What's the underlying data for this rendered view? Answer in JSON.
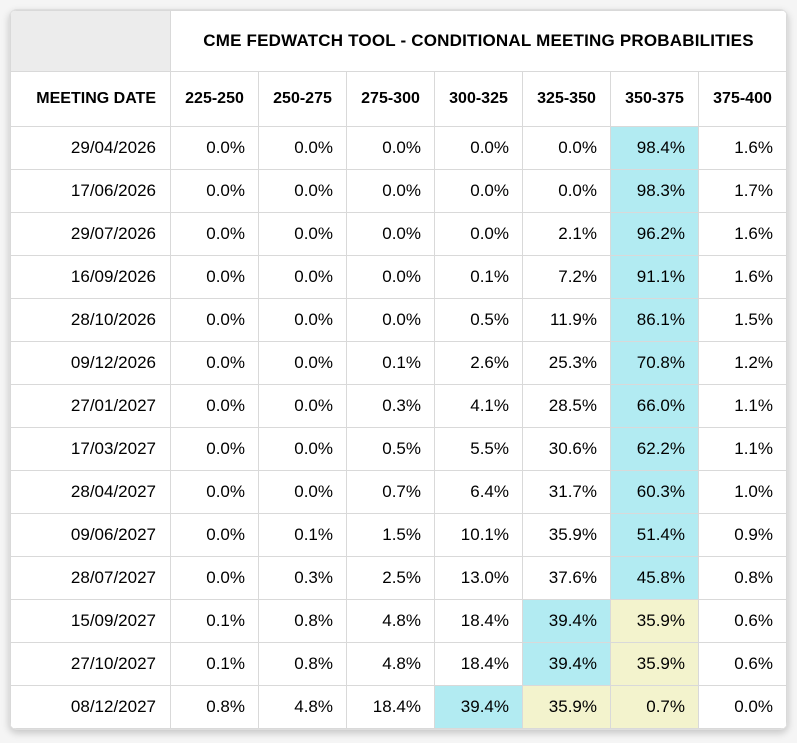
{
  "colors": {
    "highlight_primary": "#b2ebf2",
    "highlight_secondary": "#f3f3cd"
  },
  "chart_data": {
    "type": "table",
    "title": "CME FEDWATCH TOOL - CONDITIONAL MEETING PROBABILITIES",
    "columns": [
      "MEETING DATE",
      "225-250",
      "250-275",
      "275-300",
      "300-325",
      "325-350",
      "350-375",
      "375-400"
    ],
    "rows": [
      {
        "date": "29/04/2026",
        "values": [
          "0.0%",
          "0.0%",
          "0.0%",
          "0.0%",
          "0.0%",
          "98.4%",
          "1.6%"
        ],
        "highlights": {
          "5": "cyan"
        }
      },
      {
        "date": "17/06/2026",
        "values": [
          "0.0%",
          "0.0%",
          "0.0%",
          "0.0%",
          "0.0%",
          "98.3%",
          "1.7%"
        ],
        "highlights": {
          "5": "cyan"
        }
      },
      {
        "date": "29/07/2026",
        "values": [
          "0.0%",
          "0.0%",
          "0.0%",
          "0.0%",
          "2.1%",
          "96.2%",
          "1.6%"
        ],
        "highlights": {
          "5": "cyan"
        }
      },
      {
        "date": "16/09/2026",
        "values": [
          "0.0%",
          "0.0%",
          "0.0%",
          "0.1%",
          "7.2%",
          "91.1%",
          "1.6%"
        ],
        "highlights": {
          "5": "cyan"
        }
      },
      {
        "date": "28/10/2026",
        "values": [
          "0.0%",
          "0.0%",
          "0.0%",
          "0.5%",
          "11.9%",
          "86.1%",
          "1.5%"
        ],
        "highlights": {
          "5": "cyan"
        }
      },
      {
        "date": "09/12/2026",
        "values": [
          "0.0%",
          "0.0%",
          "0.1%",
          "2.6%",
          "25.3%",
          "70.8%",
          "1.2%"
        ],
        "highlights": {
          "5": "cyan"
        }
      },
      {
        "date": "27/01/2027",
        "values": [
          "0.0%",
          "0.0%",
          "0.3%",
          "4.1%",
          "28.5%",
          "66.0%",
          "1.1%"
        ],
        "highlights": {
          "5": "cyan"
        }
      },
      {
        "date": "17/03/2027",
        "values": [
          "0.0%",
          "0.0%",
          "0.5%",
          "5.5%",
          "30.6%",
          "62.2%",
          "1.1%"
        ],
        "highlights": {
          "5": "cyan"
        }
      },
      {
        "date": "28/04/2027",
        "values": [
          "0.0%",
          "0.0%",
          "0.7%",
          "6.4%",
          "31.7%",
          "60.3%",
          "1.0%"
        ],
        "highlights": {
          "5": "cyan"
        }
      },
      {
        "date": "09/06/2027",
        "values": [
          "0.0%",
          "0.1%",
          "1.5%",
          "10.1%",
          "35.9%",
          "51.4%",
          "0.9%"
        ],
        "highlights": {
          "5": "cyan"
        }
      },
      {
        "date": "28/07/2027",
        "values": [
          "0.0%",
          "0.3%",
          "2.5%",
          "13.0%",
          "37.6%",
          "45.8%",
          "0.8%"
        ],
        "highlights": {
          "5": "cyan"
        }
      },
      {
        "date": "15/09/2027",
        "values": [
          "0.1%",
          "0.8%",
          "4.8%",
          "18.4%",
          "39.4%",
          "35.9%",
          "0.6%"
        ],
        "highlights": {
          "4": "cyan",
          "5": "yellow"
        }
      },
      {
        "date": "27/10/2027",
        "values": [
          "0.1%",
          "0.8%",
          "4.8%",
          "18.4%",
          "39.4%",
          "35.9%",
          "0.6%"
        ],
        "highlights": {
          "4": "cyan",
          "5": "yellow"
        }
      },
      {
        "date": "08/12/2027",
        "values": [
          "0.8%",
          "4.8%",
          "18.4%",
          "39.4%",
          "35.9%",
          "0.7%",
          "0.0%"
        ],
        "highlights": {
          "3": "cyan",
          "4": "yellow",
          "5": "yellow"
        }
      }
    ]
  }
}
